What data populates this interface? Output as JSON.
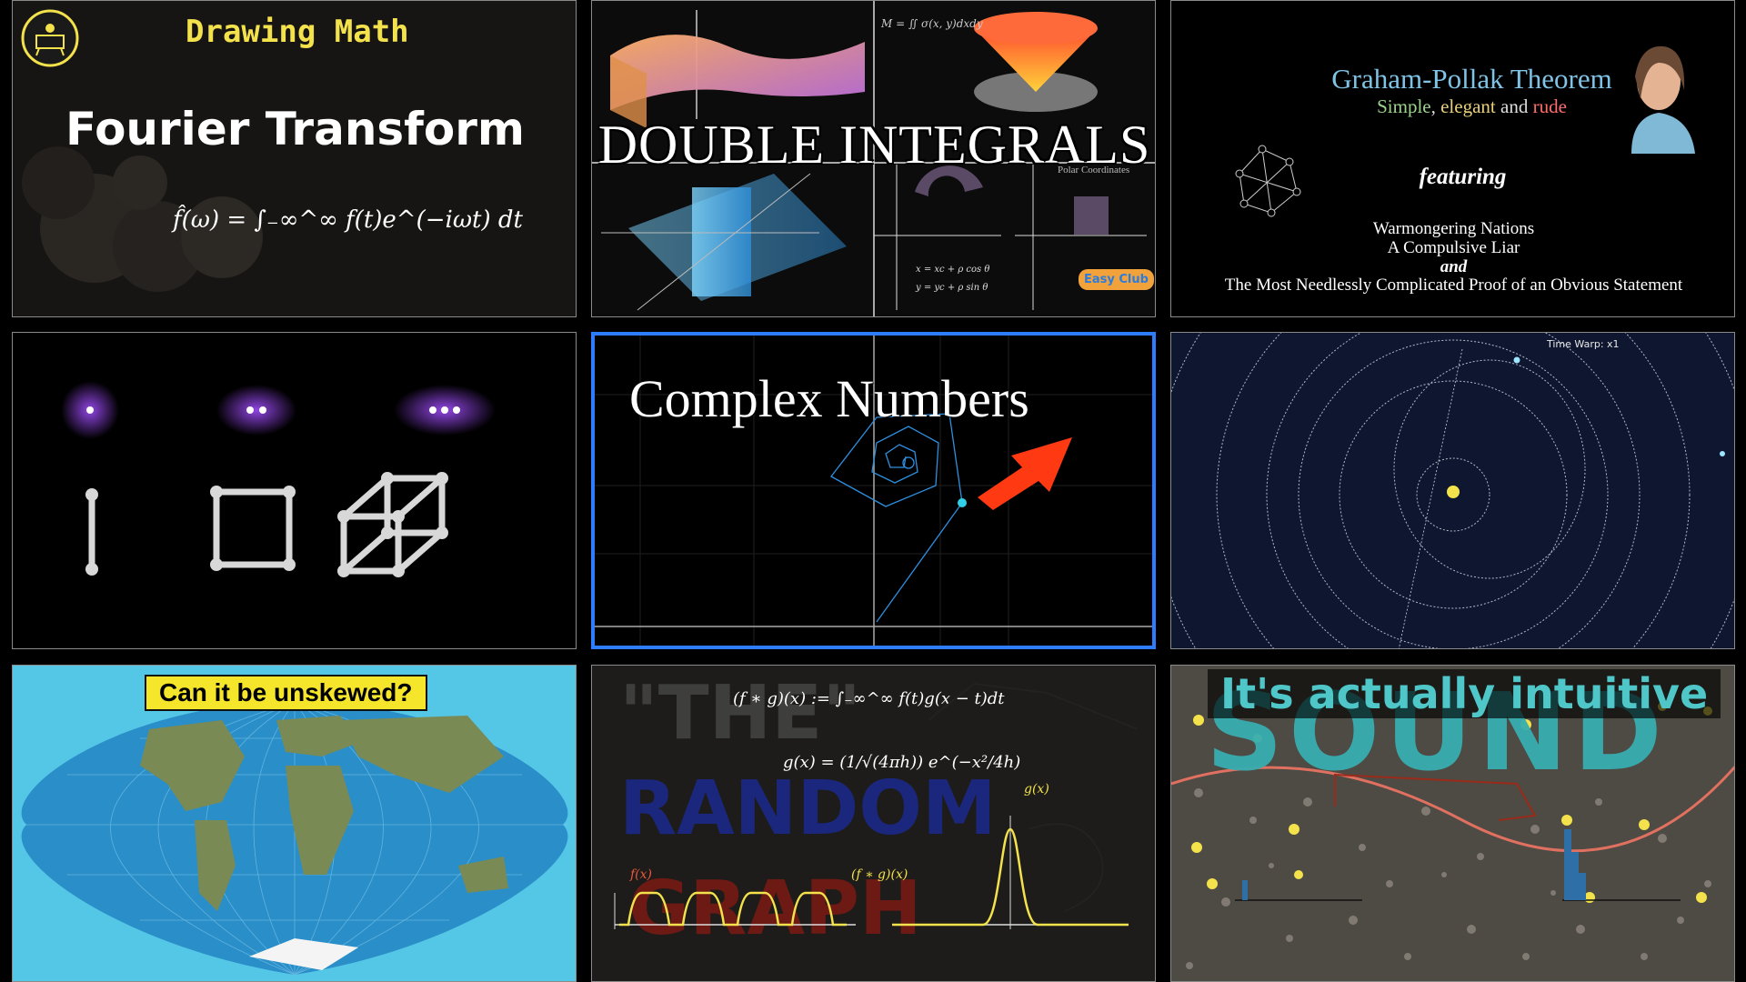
{
  "tiles": {
    "fourier": {
      "channel_text": "Drawing Math",
      "title": "Fourier Transform",
      "formula": "f̂(ω) = ∫₋∞^∞ f(t)e^(−iωt) dt"
    },
    "double_integrals": {
      "title": "DOUBLE INTEGRALS",
      "mass_formula": "M = ∬ σ(x, y)dxdy",
      "polar_label": "Polar Coordinates",
      "eq1": "x = xc + ρ cos θ",
      "eq2": "y = yc + ρ sin θ",
      "badge": "Easy Club"
    },
    "graham_pollak": {
      "title": "Graham-Pollak Theorem",
      "subtitle_simple": "Simple",
      "subtitle_comma": ", ",
      "subtitle_elegant": "elegant",
      "subtitle_and": " and ",
      "subtitle_rude": "rude",
      "featuring": "featuring",
      "line1": "Warmongering Nations",
      "line2": "A Compulsive Liar",
      "line3": "and",
      "line4": "The Most Needlessly Complicated Proof of an Obvious Statement"
    },
    "complex_numbers": {
      "title": "Complex Numbers"
    },
    "orbits": {
      "time_warp": "Time Warp: x1"
    },
    "map": {
      "question": "Can it be unskewed?"
    },
    "random_graph": {
      "scribble_1": "\"THE\"",
      "scribble_2": "RANDOM",
      "scribble_3": "GRAPH",
      "conv_formula": "(f ∗ g)(x) := ∫₋∞^∞ f(t)g(x − t)dt",
      "gauss_formula": "g(x) = (1/√(4πh)) e^(−x²/4h)",
      "label_f": "f(x)",
      "label_conv": "(f ∗ g)(x)",
      "label_g": "g(x)"
    },
    "sound": {
      "big_word": "SOUND",
      "subtitle": "It's actually intuitive"
    }
  },
  "colors": {
    "selection_border": "#2f7dff",
    "drawing_math_yellow": "#f3e24b",
    "gp_title_blue": "#7fc3e6",
    "gp_simple_green": "#9bd48a",
    "gp_elegant_yellow": "#e9d07a",
    "gp_rude_red": "#ff6e6e",
    "arrow_red": "#ff3a12",
    "glow_purple": "#a24dff",
    "sound_teal": "#37aeb0"
  }
}
